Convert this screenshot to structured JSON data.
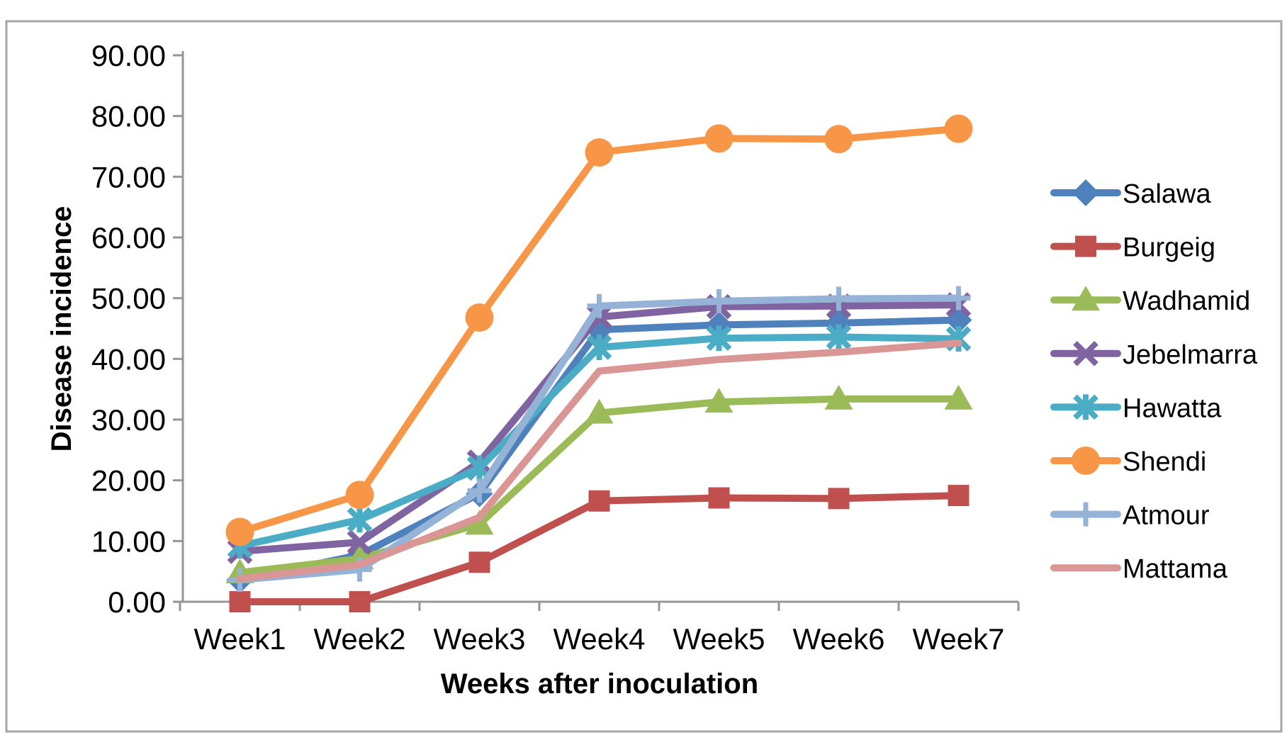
{
  "frame": {
    "background": "#FFFFFF",
    "border_color": "#A6A6A6"
  },
  "chart_data": {
    "type": "line",
    "title": "",
    "xlabel": "Weeks after inoculation",
    "ylabel": "Disease incidence",
    "categories": [
      "Week1",
      "Week2",
      "Week3",
      "Week4",
      "Week5",
      "Week6",
      "Week7"
    ],
    "series": [
      {
        "name": "Salawa",
        "color": "#4F81BD",
        "marker": "diamond",
        "values": [
          3.6,
          7.7,
          17.8,
          44.8,
          45.6,
          45.9,
          46.4
        ]
      },
      {
        "name": "Burgeig",
        "color": "#C0504D",
        "marker": "square",
        "values": [
          0.0,
          0.0,
          6.5,
          16.6,
          17.1,
          17.0,
          17.5
        ]
      },
      {
        "name": "Wadhamid",
        "color": "#9BBB59",
        "marker": "triangle",
        "values": [
          4.8,
          7.1,
          12.8,
          31.1,
          32.9,
          33.4,
          33.4
        ]
      },
      {
        "name": "Jebelmarra",
        "color": "#8064A2",
        "marker": "x",
        "values": [
          8.3,
          9.8,
          23.0,
          46.9,
          48.6,
          48.7,
          48.9
        ]
      },
      {
        "name": "Hawatta",
        "color": "#4BACC6",
        "marker": "asterisk",
        "values": [
          9.2,
          13.5,
          22.0,
          41.9,
          43.4,
          43.6,
          43.3
        ]
      },
      {
        "name": "Shendi",
        "color": "#F79646",
        "marker": "circle",
        "values": [
          11.5,
          17.6,
          46.8,
          74.0,
          76.3,
          76.2,
          77.9
        ]
      },
      {
        "name": "Atmour",
        "color": "#95B3D7",
        "marker": "plus",
        "values": [
          3.6,
          5.3,
          18.3,
          48.7,
          49.5,
          49.9,
          50.0
        ]
      },
      {
        "name": "Mattama",
        "color": "#D99694",
        "marker": "none",
        "values": [
          3.8,
          6.1,
          13.9,
          38.0,
          39.9,
          41.1,
          42.6
        ]
      }
    ],
    "ylim": [
      0,
      90
    ],
    "ytick_step": 10,
    "ytick_decimals": 2,
    "grid": false,
    "legend_position": "right",
    "axis_color": "#969696"
  }
}
